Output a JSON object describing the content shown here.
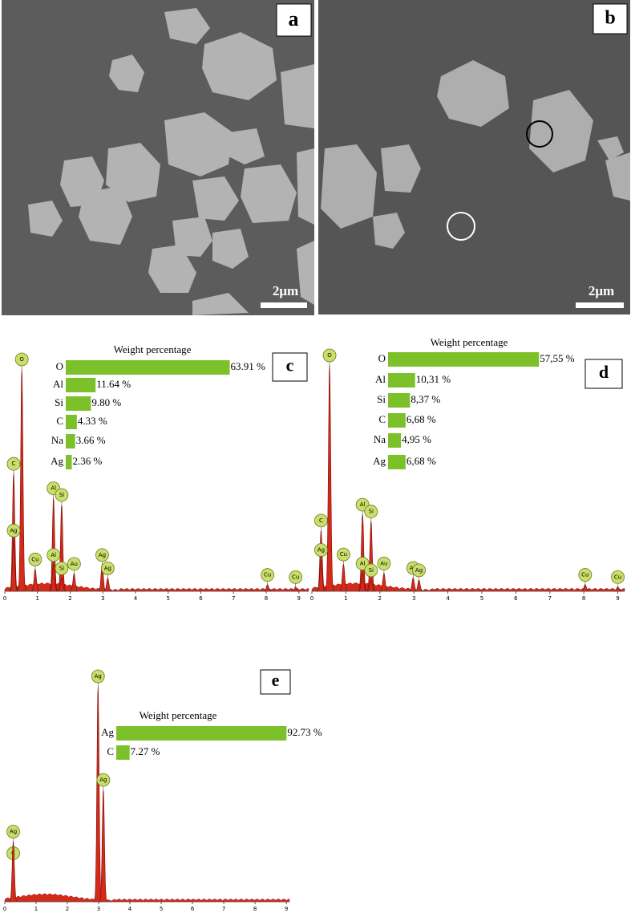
{
  "panels": [
    {
      "label": "a",
      "scale_bar": "2μm"
    },
    {
      "label": "b",
      "scale_bar": "2μm"
    }
  ],
  "chart_data": [
    {
      "type": "bar",
      "panel": "c",
      "title": "Weight percentage",
      "color": "#7cc02a",
      "categories": [
        "O",
        "Al",
        "Si",
        "C",
        "Na",
        "Ag"
      ],
      "values": [
        63.91,
        11.64,
        9.8,
        4.33,
        3.66,
        2.36
      ],
      "value_labels": [
        "63.91 %",
        "11.64 %",
        "9.80 %",
        "4.33 %",
        "3.66 %",
        "2.36 %"
      ],
      "spectrum": {
        "xlim": [
          0,
          9.3
        ],
        "xticks": [
          0,
          1,
          2,
          3,
          4,
          5,
          6,
          7,
          8,
          9
        ],
        "peaks": [
          {
            "element": "O",
            "x": 0.52,
            "height": 100
          },
          {
            "element": "C",
            "x": 0.27,
            "height": 53
          },
          {
            "element": "Ag",
            "x": 0.27,
            "height": 23
          },
          {
            "element": "Cu",
            "x": 0.93,
            "height": 10
          },
          {
            "element": "Al",
            "x": 1.49,
            "height": 42
          },
          {
            "element": "Si",
            "x": 1.74,
            "height": 39
          },
          {
            "element": "Al",
            "x": 1.49,
            "height": 12
          },
          {
            "element": "Si",
            "x": 1.74,
            "height": 6
          },
          {
            "element": "Au",
            "x": 2.12,
            "height": 8
          },
          {
            "element": "Ag",
            "x": 2.98,
            "height": 12
          },
          {
            "element": "Ag",
            "x": 3.15,
            "height": 6
          },
          {
            "element": "Cu",
            "x": 8.04,
            "height": 3
          },
          {
            "element": "Cu",
            "x": 8.9,
            "height": 2
          }
        ]
      }
    },
    {
      "type": "bar",
      "panel": "d",
      "title": "Weight percentage",
      "color": "#7cc02a",
      "categories": [
        "O",
        "Al",
        "Si",
        "C",
        "Na",
        "Ag"
      ],
      "values": [
        57.55,
        10.31,
        8.37,
        6.68,
        4.95,
        6.68
      ],
      "value_labels": [
        "57,55 %",
        "10,31 %",
        "8,37 %",
        "6,68 %",
        "4,95 %",
        "6,68 %"
      ],
      "spectrum": {
        "xlim": [
          0,
          9.2
        ],
        "xticks": [
          0,
          1,
          2,
          3,
          4,
          5,
          6,
          7,
          8,
          9
        ],
        "peaks": [
          {
            "element": "O",
            "x": 0.52,
            "height": 100
          },
          {
            "element": "C",
            "x": 0.27,
            "height": 27
          },
          {
            "element": "Ag",
            "x": 0.27,
            "height": 14
          },
          {
            "element": "Cu",
            "x": 0.93,
            "height": 12
          },
          {
            "element": "Al",
            "x": 1.49,
            "height": 34
          },
          {
            "element": "Si",
            "x": 1.74,
            "height": 31
          },
          {
            "element": "Al",
            "x": 1.49,
            "height": 8
          },
          {
            "element": "Si",
            "x": 1.74,
            "height": 5
          },
          {
            "element": "Au",
            "x": 2.12,
            "height": 8
          },
          {
            "element": "Ag",
            "x": 2.98,
            "height": 6
          },
          {
            "element": "Ag",
            "x": 3.15,
            "height": 5
          },
          {
            "element": "Cu",
            "x": 8.04,
            "height": 3
          },
          {
            "element": "Cu",
            "x": 9.0,
            "height": 2
          }
        ]
      }
    },
    {
      "type": "bar",
      "panel": "e",
      "title": "Weight percentage",
      "color": "#7cc02a",
      "categories": [
        "Ag",
        "C"
      ],
      "values": [
        92.73,
        7.27
      ],
      "value_labels": [
        "92.73 %",
        "7.27 %"
      ],
      "spectrum": {
        "xlim": [
          0,
          9.1
        ],
        "xticks": [
          0,
          1,
          2,
          3,
          4,
          5,
          6,
          7,
          8,
          9
        ],
        "peaks": [
          {
            "element": "Ag",
            "x": 2.98,
            "height": 100
          },
          {
            "element": "Ag",
            "x": 3.15,
            "height": 52
          },
          {
            "element": "C",
            "x": 0.27,
            "height": 18
          },
          {
            "element": "Ag",
            "x": 0.27,
            "height": 28
          }
        ]
      }
    }
  ]
}
